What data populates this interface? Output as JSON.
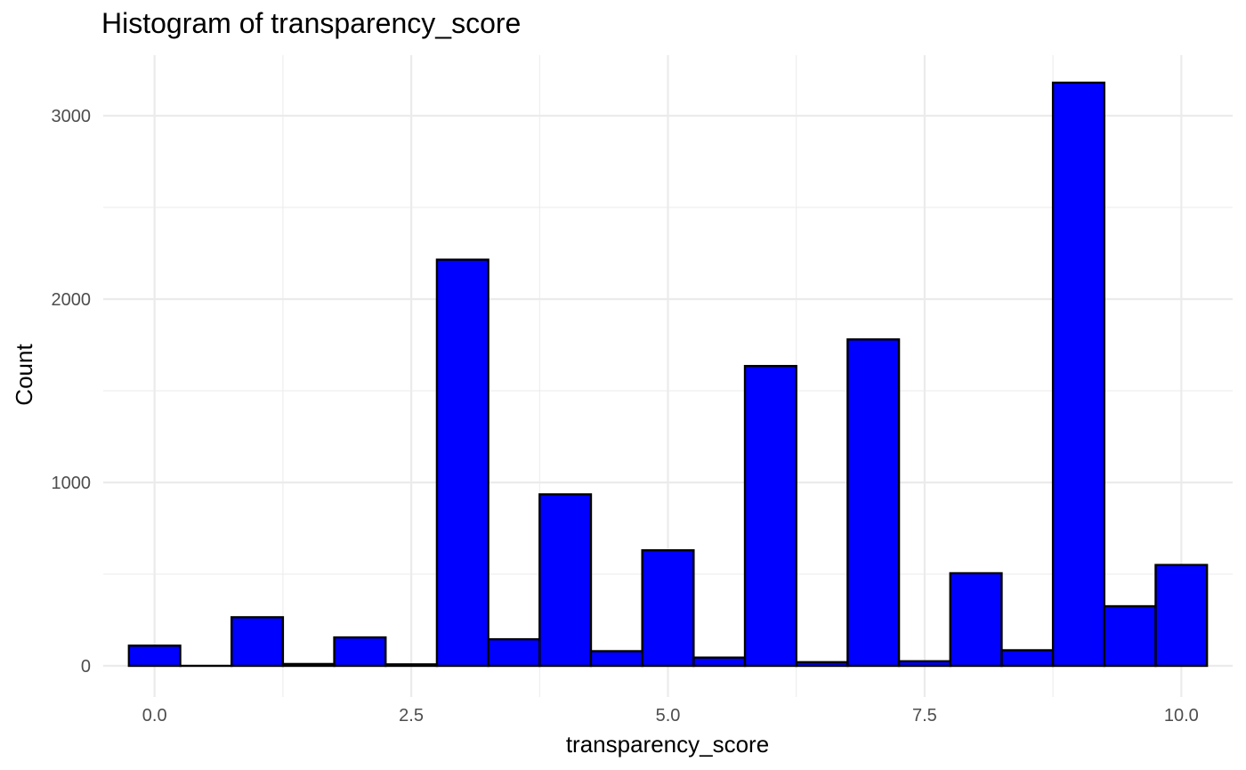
{
  "chart_data": {
    "type": "bar",
    "title": "Histogram of transparency_score",
    "xlabel": "transparency_score",
    "ylabel": "Count",
    "xlim": [
      -0.5,
      10.5
    ],
    "ylim": [
      -170,
      3330
    ],
    "x_ticks": [
      0.0,
      2.5,
      5.0,
      7.5,
      10.0
    ],
    "x_tick_labels": [
      "0.0",
      "2.5",
      "5.0",
      "7.5",
      "10.0"
    ],
    "y_ticks": [
      0,
      1000,
      2000,
      3000
    ],
    "y_tick_labels": [
      "0",
      "1000",
      "2000",
      "3000"
    ],
    "grid": true,
    "bar_fill": "#0000ff",
    "bar_outline": "#000000",
    "bin_width": 0.5,
    "bins": [
      {
        "start": -0.25,
        "end": 0.25,
        "count": 110
      },
      {
        "start": 0.25,
        "end": 0.75,
        "count": 0
      },
      {
        "start": 0.75,
        "end": 1.25,
        "count": 265
      },
      {
        "start": 1.25,
        "end": 1.75,
        "count": 10
      },
      {
        "start": 1.75,
        "end": 2.25,
        "count": 155
      },
      {
        "start": 2.25,
        "end": 2.75,
        "count": 8
      },
      {
        "start": 2.75,
        "end": 3.25,
        "count": 2215
      },
      {
        "start": 3.25,
        "end": 3.75,
        "count": 145
      },
      {
        "start": 3.75,
        "end": 4.25,
        "count": 935
      },
      {
        "start": 4.25,
        "end": 4.75,
        "count": 80
      },
      {
        "start": 4.75,
        "end": 5.25,
        "count": 630
      },
      {
        "start": 5.25,
        "end": 5.75,
        "count": 45
      },
      {
        "start": 5.75,
        "end": 6.25,
        "count": 1635
      },
      {
        "start": 6.25,
        "end": 6.75,
        "count": 20
      },
      {
        "start": 6.75,
        "end": 7.25,
        "count": 1780
      },
      {
        "start": 7.25,
        "end": 7.75,
        "count": 25
      },
      {
        "start": 7.75,
        "end": 8.25,
        "count": 505
      },
      {
        "start": 8.25,
        "end": 8.75,
        "count": 85
      },
      {
        "start": 8.75,
        "end": 9.25,
        "count": 3180
      },
      {
        "start": 9.25,
        "end": 9.75,
        "count": 325
      },
      {
        "start": 9.75,
        "end": 10.25,
        "count": 550
      }
    ]
  }
}
